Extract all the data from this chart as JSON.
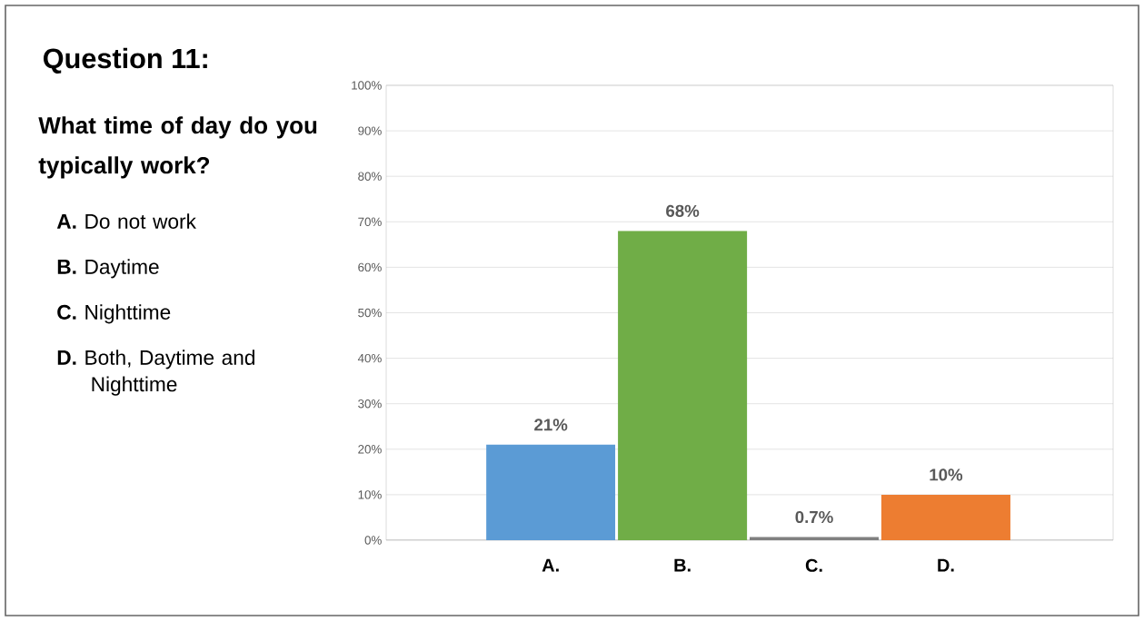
{
  "chart_data": {
    "type": "bar",
    "title": "Question 11:",
    "subtitle": "What time of day do you typically work?",
    "annotations": [
      "**A.** Do not work",
      "**B.** Daytime",
      "**C.** Nighttime",
      "**D.** Both, Daytime and Nighttime"
    ],
    "categories": [
      "A.",
      "B.",
      "C.",
      "D."
    ],
    "values": [
      21,
      68,
      0.7,
      10
    ],
    "colors": [
      "#5b9bd5",
      "#70ad47",
      "#808080",
      "#ed7d31"
    ],
    "value_labels": [
      "21%",
      "68%",
      "0.7%",
      "10%"
    ],
    "ylim": [
      0,
      100
    ],
    "yticks": [
      {
        "value": 0,
        "label": "0%"
      },
      {
        "value": 10,
        "label": "10%"
      },
      {
        "value": 20,
        "label": "20%"
      },
      {
        "value": 30,
        "label": "30%"
      },
      {
        "value": 40,
        "label": "40%"
      },
      {
        "value": 50,
        "label": "50%"
      },
      {
        "value": 60,
        "label": "60%"
      },
      {
        "value": 70,
        "label": "70%"
      },
      {
        "value": 80,
        "label": "80%"
      },
      {
        "value": 90,
        "label": "90%"
      },
      {
        "value": 100,
        "label": "100%"
      }
    ],
    "grid": "y"
  }
}
